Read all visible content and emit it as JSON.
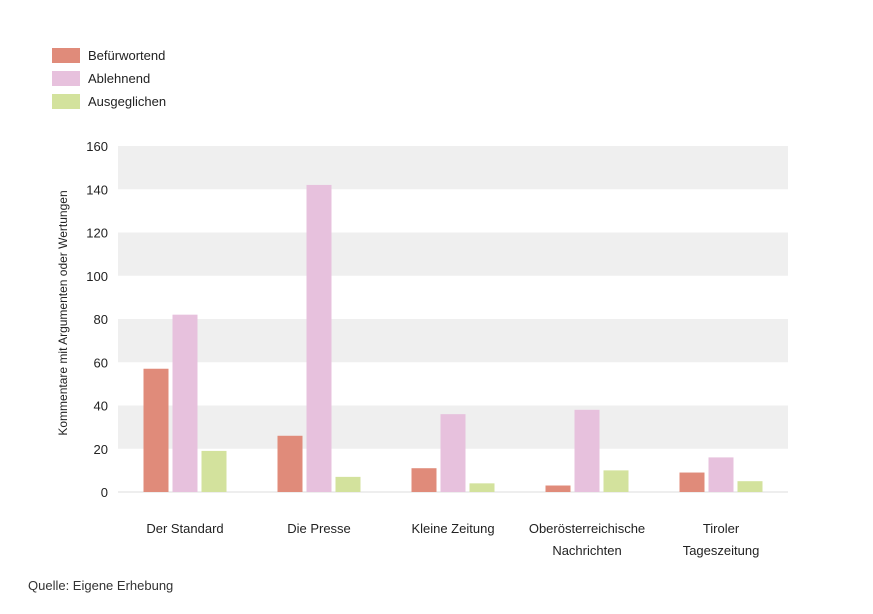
{
  "chart_data": {
    "type": "bar",
    "categories": [
      [
        "Der Standard"
      ],
      [
        "Die Presse"
      ],
      [
        "Kleine Zeitung"
      ],
      [
        "Oberösterreichische",
        "Nachrichten"
      ],
      [
        "Tiroler",
        "Tageszeitung"
      ]
    ],
    "series": [
      {
        "name": "Befürwortend",
        "color": "#e08b7a",
        "values": [
          57,
          26,
          11,
          3,
          9
        ]
      },
      {
        "name": "Ablehnend",
        "color": "#e7c1dd",
        "values": [
          82,
          142,
          36,
          38,
          16
        ]
      },
      {
        "name": "Ausgeglichen",
        "color": "#d3e29d",
        "values": [
          19,
          7,
          4,
          10,
          5
        ]
      }
    ],
    "ylabel": "Kommentare mit Argumenten oder Wertungen",
    "ylim": [
      0,
      160
    ],
    "yticks": [
      0,
      20,
      40,
      60,
      80,
      100,
      120,
      140,
      160
    ],
    "grid": "alternating horizontal bands",
    "legend_position": "top-left"
  },
  "source_note": "Quelle: Eigene Erhebung"
}
